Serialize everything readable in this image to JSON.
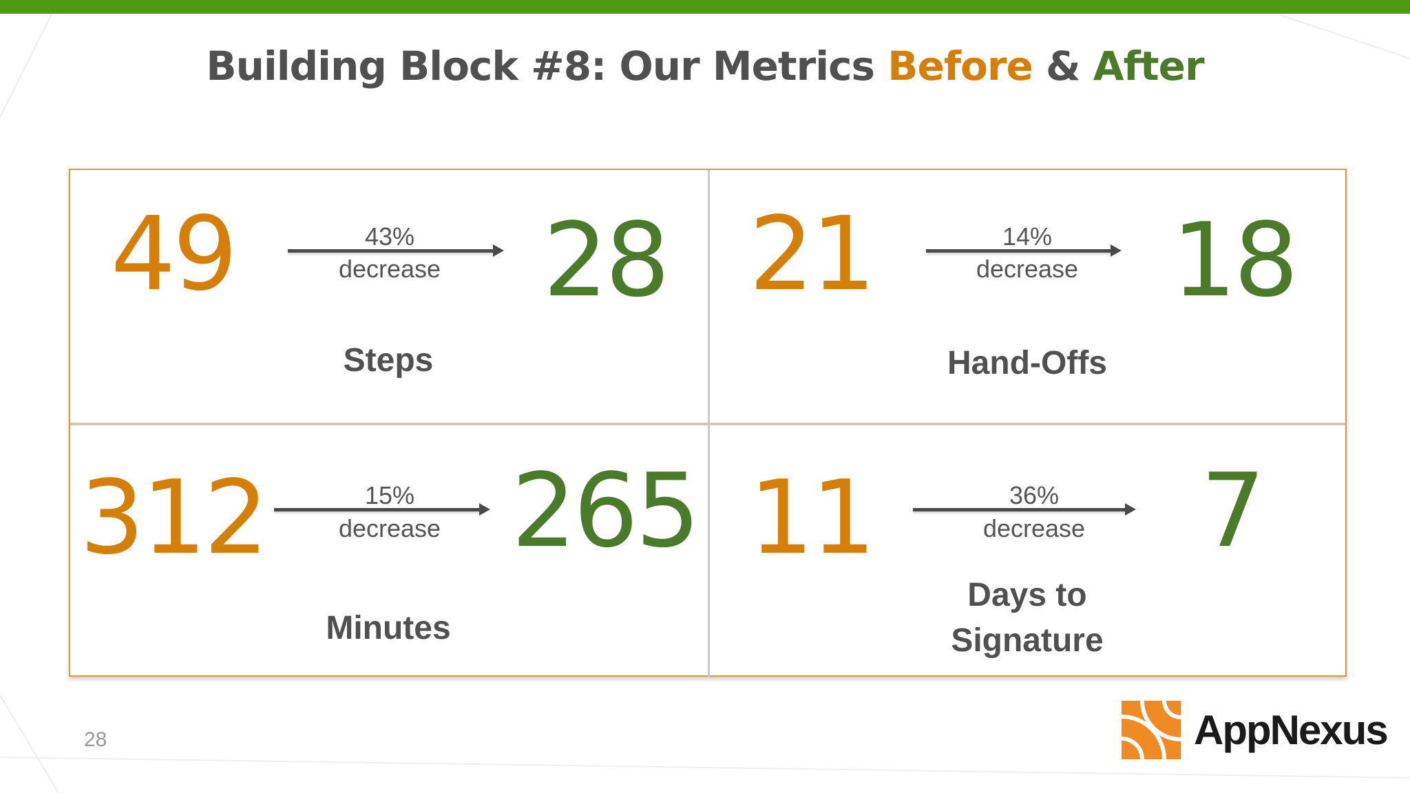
{
  "slide": {
    "title_prefix": "Building Block #8: Our Metrics ",
    "title_before": "Before",
    "title_amp": " & ",
    "title_after": "After",
    "page_number": "28",
    "logo_text": "AppNexus"
  },
  "colors": {
    "before": "#d47f0a",
    "after": "#4a7a2a",
    "accent_bar": "#4f9a12",
    "logo": "#f08a24"
  },
  "metrics": [
    {
      "before": "49",
      "after": "28",
      "percent": "43%",
      "change": "decrease",
      "label": "Steps"
    },
    {
      "before": "21",
      "after": "18",
      "percent": "14%",
      "change": "decrease",
      "label": "Hand-Offs"
    },
    {
      "before": "312",
      "after": "265",
      "percent": "15%",
      "change": "decrease",
      "label": "Minutes"
    },
    {
      "before": "11",
      "after": "7",
      "percent": "36%",
      "change": "decrease",
      "label_line1": "Days to",
      "label_line2": "Signature"
    }
  ]
}
